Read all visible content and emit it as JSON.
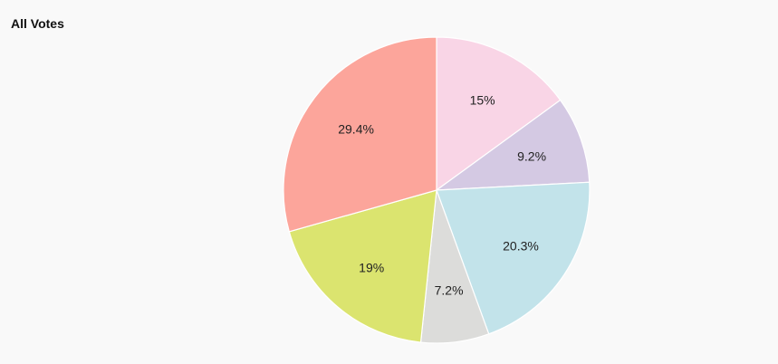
{
  "chart_data": {
    "type": "pie",
    "title": "All Votes",
    "slices": [
      {
        "value": 15,
        "label": "15%",
        "color": "#f9d5e6"
      },
      {
        "value": 9.2,
        "label": "9.2%",
        "color": "#d4c9e3"
      },
      {
        "value": 20.3,
        "label": "20.3%",
        "color": "#c2e3ea"
      },
      {
        "value": 7.2,
        "label": "7.2%",
        "color": "#dcdcda"
      },
      {
        "value": 19,
        "label": "19%",
        "color": "#dbe46f"
      },
      {
        "value": 29.4,
        "label": "29.4%",
        "color": "#fca59b"
      }
    ]
  }
}
